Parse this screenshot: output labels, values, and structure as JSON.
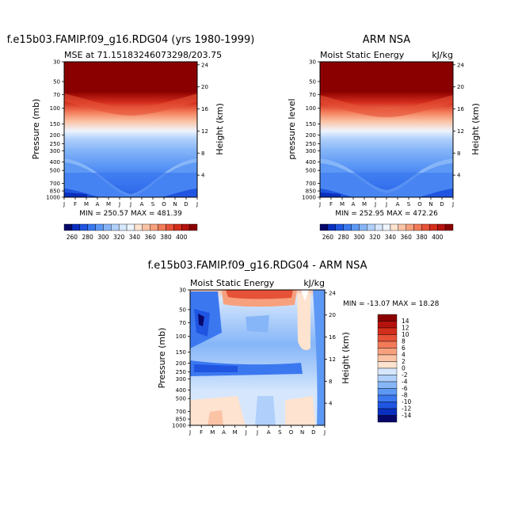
{
  "months": [
    "J",
    "F",
    "M",
    "A",
    "M",
    "J",
    "J",
    "A",
    "S",
    "O",
    "N",
    "D",
    "J"
  ],
  "pressure_ticks": [
    "30",
    "50",
    "70",
    "100",
    "150",
    "200",
    "250",
    "300",
    "400",
    "500",
    "700",
    "850",
    "1000"
  ],
  "height_ticks": [
    "24",
    "20",
    "16",
    "12",
    "8",
    "4"
  ],
  "panels": [
    {
      "id": "model",
      "title": "f.e15b03.FAMIP.f09_g16.RDG04 (yrs 1980-1999)",
      "left_subtitle": "MSE at 71.15183246073298/203.75",
      "right_subtitle": "",
      "ylabel": "Pressure (mb)",
      "ylabel_right": "Height (km)",
      "stats": "MIN = 250.57 MAX = 481.39"
    },
    {
      "id": "obs",
      "title": "ARM NSA",
      "left_subtitle": "Moist Static Energy",
      "right_subtitle": "kJ/kg",
      "ylabel": "pressure level",
      "ylabel_right": "Height (km)",
      "stats": "MIN = 252.95 MAX = 472.26"
    },
    {
      "id": "diff",
      "title": "f.e15b03.FAMIP.f09_g16.RDG04 - ARM NSA",
      "left_subtitle": "Moist Static Energy",
      "right_subtitle": "kJ/kg",
      "ylabel": "Pressure (mb)",
      "ylabel_right": "Height (km)",
      "stats": "MIN = -13.07 MAX =  18.28"
    }
  ],
  "colorbar_top": {
    "labels": [
      "260",
      "280",
      "300",
      "320",
      "340",
      "360",
      "380",
      "400"
    ],
    "colors": [
      "#08086b",
      "#0a2fbf",
      "#1f55e0",
      "#3b78f0",
      "#5d98f5",
      "#86b6f8",
      "#b0d0fb",
      "#d6e7fd",
      "#eef4fd",
      "#fde3d0",
      "#fbc3a5",
      "#f7a07d",
      "#f27a59",
      "#e65237",
      "#d32d1c",
      "#b5120e",
      "#8a0000"
    ]
  },
  "colorbar_diff": {
    "labels": [
      "14",
      "12",
      "10",
      "8",
      "6",
      "4",
      "2",
      "0",
      "-2",
      "-4",
      "-6",
      "-8",
      "-10",
      "-12",
      "-14"
    ],
    "colors": [
      "#8a0000",
      "#b5120e",
      "#d32d1c",
      "#e65237",
      "#f27a59",
      "#f7a07d",
      "#fbc3a5",
      "#fde3d0",
      "#d6e7fd",
      "#b0d0fb",
      "#86b6f8",
      "#5d98f5",
      "#3b78f0",
      "#1f55e0",
      "#0a2fbf",
      "#08086b"
    ]
  },
  "chart_data": [
    {
      "type": "heatmap",
      "title": "f.e15b03.FAMIP.f09_g16.RDG04 (yrs 1980-1999)",
      "subtitle": "MSE at 71.15183246073298/203.75",
      "xlabel": "",
      "ylabel": "Pressure (mb)",
      "y2label": "Height (km)",
      "x": [
        "J",
        "F",
        "M",
        "A",
        "M",
        "J",
        "J",
        "A",
        "S",
        "O",
        "N",
        "D",
        "J"
      ],
      "y_pressure": [
        1000,
        850,
        700,
        500,
        400,
        300,
        250,
        200,
        150,
        100,
        70,
        50,
        30
      ],
      "min": 250.57,
      "max": 481.39
    },
    {
      "type": "heatmap",
      "title": "ARM NSA",
      "subtitle": "Moist Static Energy",
      "units": "kJ/kg",
      "ylabel": "pressure level",
      "y2label": "Height (km)",
      "x": [
        "J",
        "F",
        "M",
        "A",
        "M",
        "J",
        "J",
        "A",
        "S",
        "O",
        "N",
        "D",
        "J"
      ],
      "y_pressure": [
        1000,
        850,
        700,
        500,
        400,
        300,
        250,
        200,
        150,
        100,
        70,
        50,
        30
      ],
      "min": 252.95,
      "max": 472.26
    },
    {
      "type": "heatmap",
      "title": "f.e15b03.FAMIP.f09_g16.RDG04 - ARM NSA",
      "subtitle": "Moist Static Energy",
      "units": "kJ/kg",
      "ylabel": "Pressure (mb)",
      "y2label": "Height (km)",
      "x": [
        "J",
        "F",
        "M",
        "A",
        "M",
        "J",
        "J",
        "A",
        "S",
        "O",
        "N",
        "D",
        "J"
      ],
      "y_pressure": [
        1000,
        850,
        700,
        500,
        400,
        300,
        250,
        200,
        150,
        100,
        70,
        50,
        30
      ],
      "min": -13.07,
      "max": 18.28
    }
  ]
}
